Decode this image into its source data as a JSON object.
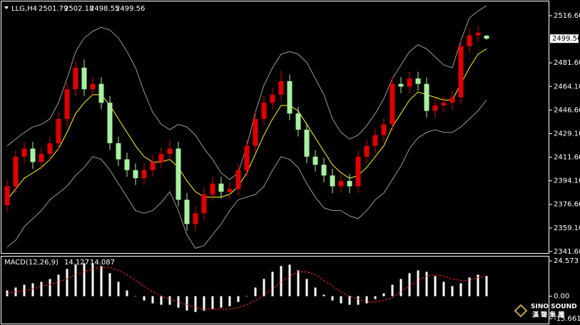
{
  "chart_data": [
    {
      "type": "candlestick",
      "title": "LLG,H4",
      "open": [
        2376,
        2390,
        2412,
        2418,
        2408,
        2414,
        2422,
        2440,
        2462,
        2478,
        2462,
        2466,
        2452,
        2422,
        2410,
        2402,
        2396,
        2402,
        2408,
        2414,
        2418,
        2380,
        2362,
        2370,
        2384,
        2392,
        2386,
        2388,
        2402,
        2420,
        2440,
        2452,
        2458,
        2468,
        2444,
        2432,
        2412,
        2406,
        2398,
        2390,
        2394,
        2390,
        2412,
        2420,
        2428,
        2436,
        2466,
        2464,
        2470,
        2466,
        2446,
        2450,
        2452,
        2456,
        2494,
        2502,
        2501.79
      ],
      "high": [
        2395,
        2417,
        2423,
        2423,
        2419,
        2427,
        2445,
        2467,
        2483,
        2484,
        2471,
        2471,
        2457,
        2427,
        2415,
        2407,
        2407,
        2413,
        2419,
        2425,
        2423,
        2385,
        2375,
        2389,
        2397,
        2397,
        2393,
        2407,
        2425,
        2445,
        2457,
        2463,
        2476,
        2473,
        2449,
        2437,
        2417,
        2411,
        2403,
        2399,
        2399,
        2417,
        2425,
        2433,
        2441,
        2471,
        2471,
        2475,
        2475,
        2471,
        2455,
        2457,
        2461,
        2499,
        2507,
        2509,
        2502.18
      ],
      "low": [
        2371,
        2385,
        2407,
        2403,
        2403,
        2409,
        2417,
        2435,
        2457,
        2457,
        2457,
        2447,
        2417,
        2405,
        2397,
        2391,
        2391,
        2397,
        2403,
        2409,
        2375,
        2357,
        2357,
        2365,
        2379,
        2381,
        2381,
        2383,
        2397,
        2415,
        2435,
        2447,
        2453,
        2439,
        2427,
        2407,
        2401,
        2393,
        2385,
        2385,
        2385,
        2385,
        2407,
        2415,
        2423,
        2431,
        2459,
        2459,
        2461,
        2441,
        2441,
        2445,
        2447,
        2451,
        2489,
        2497,
        2498.55
      ],
      "close": [
        2390,
        2412,
        2418,
        2408,
        2414,
        2422,
        2440,
        2462,
        2478,
        2462,
        2466,
        2452,
        2422,
        2410,
        2402,
        2396,
        2402,
        2408,
        2414,
        2418,
        2380,
        2362,
        2370,
        2384,
        2392,
        2386,
        2388,
        2402,
        2420,
        2440,
        2452,
        2458,
        2468,
        2444,
        2432,
        2412,
        2406,
        2398,
        2390,
        2394,
        2390,
        2412,
        2420,
        2428,
        2436,
        2466,
        2464,
        2470,
        2466,
        2446,
        2450,
        2452,
        2456,
        2494,
        2502,
        2504,
        2499.56
      ],
      "up_color": "#e00000",
      "down_color": "#a8f0a0",
      "series": [
        {
          "color": "#ffff00",
          "values": [
            2380,
            2388,
            2396,
            2400,
            2404,
            2410,
            2418,
            2430,
            2444,
            2452,
            2458,
            2458,
            2450,
            2440,
            2430,
            2420,
            2412,
            2408,
            2408,
            2410,
            2404,
            2394,
            2386,
            2382,
            2382,
            2382,
            2384,
            2390,
            2400,
            2414,
            2428,
            2440,
            2450,
            2450,
            2446,
            2436,
            2426,
            2416,
            2406,
            2400,
            2396,
            2398,
            2404,
            2412,
            2420,
            2434,
            2444,
            2454,
            2460,
            2458,
            2456,
            2454,
            2454,
            2466,
            2478,
            2488,
            2492
          ]
        },
        {
          "color": "#9a9a9a",
          "values": [
            2420,
            2425,
            2430,
            2434,
            2436,
            2440,
            2452,
            2470,
            2490,
            2500,
            2505,
            2508,
            2506,
            2500,
            2490,
            2478,
            2460,
            2445,
            2436,
            2432,
            2436,
            2434,
            2428,
            2418,
            2410,
            2400,
            2395,
            2400,
            2420,
            2445,
            2465,
            2478,
            2488,
            2490,
            2488,
            2482,
            2470,
            2458,
            2440,
            2430,
            2425,
            2428,
            2435,
            2444,
            2455,
            2470,
            2480,
            2490,
            2495,
            2492,
            2486,
            2480,
            2478,
            2498,
            2515,
            2520,
            2524
          ]
        },
        {
          "color": "#9a9a9a",
          "values": [
            2345,
            2350,
            2360,
            2366,
            2372,
            2380,
            2385,
            2390,
            2398,
            2404,
            2412,
            2410,
            2402,
            2392,
            2382,
            2372,
            2370,
            2372,
            2378,
            2386,
            2372,
            2354,
            2344,
            2346,
            2354,
            2362,
            2372,
            2380,
            2382,
            2384,
            2390,
            2402,
            2412,
            2410,
            2404,
            2392,
            2382,
            2374,
            2372,
            2372,
            2368,
            2366,
            2372,
            2380,
            2385,
            2395,
            2405,
            2418,
            2426,
            2430,
            2432,
            2430,
            2430,
            2434,
            2440,
            2446,
            2454
          ]
        }
      ],
      "ylim": [
        2340.5,
        2525.6
      ],
      "yticks": [
        {
          "value": 2516.6,
          "label": "2516.60"
        },
        {
          "value": 2481.6,
          "label": "2481.60"
        },
        {
          "value": 2464.1,
          "label": "2464.10"
        },
        {
          "value": 2446.6,
          "label": "2446.60"
        },
        {
          "value": 2429.1,
          "label": "2429.10"
        },
        {
          "value": 2411.6,
          "label": "2411.60"
        },
        {
          "value": 2394.1,
          "label": "2394.10"
        },
        {
          "value": 2376.6,
          "label": "2376.60"
        },
        {
          "value": 2359.1,
          "label": "2359.10"
        },
        {
          "value": 2341.6,
          "label": "2341.60"
        }
      ]
    },
    {
      "type": "macd",
      "title": "MACD(12,26,9)",
      "series": [
        {
          "color": "#ffffff",
          "values": [
            4,
            6,
            8,
            9,
            10,
            12,
            15,
            19,
            22,
            23,
            23,
            21,
            16,
            10,
            4,
            0,
            -3,
            -5,
            -6,
            -6,
            -8,
            -10,
            -11,
            -10,
            -9,
            -8,
            -7,
            -4,
            0,
            6,
            12,
            17,
            21,
            22,
            18,
            12,
            6,
            1,
            -3,
            -5,
            -6,
            -6,
            -5,
            -2,
            2,
            8,
            12,
            16,
            18,
            17,
            14,
            10,
            7,
            9,
            13,
            15,
            14.127
          ]
        },
        {
          "color": "#ff2020",
          "values": [
            2,
            3,
            4,
            5,
            7,
            8,
            10,
            12,
            15,
            17,
            19,
            20,
            20,
            18,
            15,
            11,
            7,
            3,
            0,
            -2,
            -4,
            -6,
            -8,
            -9,
            -9,
            -9,
            -9,
            -8,
            -6,
            -3,
            1,
            5,
            10,
            14,
            17,
            17,
            15,
            11,
            7,
            3,
            0,
            -2,
            -4,
            -4,
            -3,
            -1,
            3,
            7,
            11,
            14,
            15,
            14,
            12,
            11,
            11,
            13,
            14.087
          ]
        }
      ],
      "ylim": [
        -18.1,
        27.6
      ],
      "yticks": [
        24.573,
        {
          "value": 0,
          "label": "0.00"
        },
        -15.661
      ]
    }
  ],
  "watermark": {
    "brand": "SINO SOUND",
    "sub": "漢 聲 集 團"
  }
}
